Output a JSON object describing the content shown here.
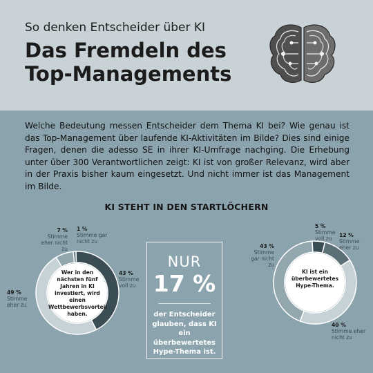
{
  "header": {
    "kicker": "So denken Entscheider über KI",
    "headline_line1": "Das Fremdeln des",
    "headline_line2": "Top-Managements"
  },
  "intro": {
    "text": "Welche Bedeutung messen Entscheider dem Thema KI bei? Wie genau ist das Top-Management über laufende KI-Aktivitäten im Bilde? Dies sind einige Fragen, denen die adesso SE in ihrer KI-Umfrage nachging. Die Erhebung unter über 300 Verantwortlichen zeigt: KI ist von großer Relevanz, wird aber in der Praxis bisher kaum eingesetzt. Und nicht immer ist das Management im Bilde."
  },
  "section_title": "KI STEHT IN DEN STARTLÖCHERN",
  "stat": {
    "prefix": "NUR",
    "value": "17 %",
    "text": "der Entscheider glauben, dass KI ein überbewertetes Hype-Thema ist."
  },
  "colors": {
    "dark": "#3a4d55",
    "mid": "#5b6f77",
    "light": "#93a7ae",
    "pale": "#c6d2d6",
    "bg": "#8ba3ad",
    "header": "#c9d2d6"
  },
  "chart_data": [
    {
      "type": "pie",
      "donut": true,
      "center_label": "Wer in den nächsten fünf Jahren in KI investiert, wird einen Wettbewerbsvorteil haben.",
      "slices": [
        {
          "label": "Stimme voll zu",
          "pct_text": "43 %",
          "value": 43,
          "color": "#3a4d55"
        },
        {
          "label": "Stimme eher zu",
          "pct_text": "49 %",
          "value": 49,
          "color": "#c6d2d6"
        },
        {
          "label": "Stimme eher nicht zu",
          "pct_text": "7 %",
          "value": 7,
          "color": "#93a7ae"
        },
        {
          "label": "Stimme gar nicht zu",
          "pct_text": "1 %",
          "value": 1,
          "color": "#5b6f77"
        }
      ]
    },
    {
      "type": "pie",
      "donut": true,
      "center_label": "KI ist ein überbewertetes Hype-Thema.",
      "slices": [
        {
          "label": "Stimme voll zu",
          "pct_text": "5 %",
          "value": 5,
          "color": "#3a4d55"
        },
        {
          "label": "Stimme eher zu",
          "pct_text": "12 %",
          "value": 12,
          "color": "#5b6f77"
        },
        {
          "label": "Stimme eher nicht zu",
          "pct_text": "40 %",
          "value": 40,
          "color": "#c6d2d6"
        },
        {
          "label": "Stimme gar nicht zu",
          "pct_text": "43 %",
          "value": 43,
          "color": "#93a7ae"
        }
      ]
    }
  ]
}
